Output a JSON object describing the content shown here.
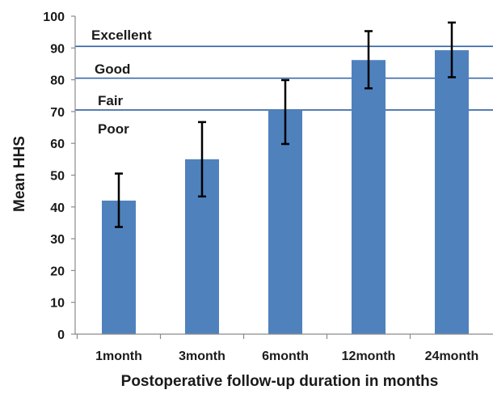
{
  "chart_data": {
    "type": "bar",
    "title": "",
    "xlabel": "Postoperative  follow-up  duration in months",
    "ylabel": "Mean  HHS",
    "ylim": [
      0,
      100
    ],
    "yticks": [
      0,
      10,
      20,
      30,
      40,
      50,
      60,
      70,
      80,
      90,
      100
    ],
    "categories": [
      "1month",
      "3month",
      "6month",
      "12month",
      "24month"
    ],
    "values": [
      42,
      55,
      70.5,
      86.2,
      89.3
    ],
    "error_low": [
      33.7,
      43.3,
      59.8,
      77.3,
      80.8
    ],
    "error_high": [
      50.5,
      66.7,
      79.9,
      95.3,
      98.0
    ],
    "bar_color": "#4F81BD",
    "reference_line_color": "#2E5FA3",
    "reference_lines": [
      {
        "value": 90.5,
        "label": "Excellent"
      },
      {
        "value": 80.5,
        "label": "Good"
      },
      {
        "value": 70.5,
        "label": "Fair"
      }
    ],
    "zone_labels": [
      "Excellent",
      "Good",
      "Fair",
      "Poor"
    ],
    "grid": false,
    "legend": "none"
  }
}
